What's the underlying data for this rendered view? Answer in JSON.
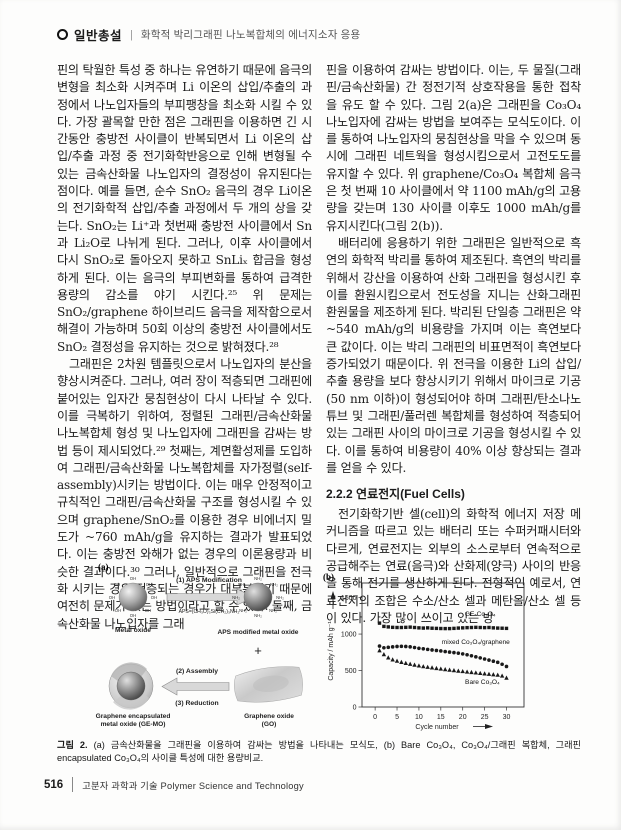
{
  "page": {
    "header": {
      "section_label": "일반총설",
      "separator": "|",
      "title": "화학적 박리그래핀 나노복합체의 에너지소자 응용"
    },
    "footer": {
      "page_number": "516",
      "journal": "고분자 과학과 기술 Polymer Science and Technology"
    }
  },
  "body": {
    "left_column": {
      "para1": "핀의 탁월한 특성 중 하나는 유연하기 때문에 음극의 변형을 최소화 시켜주며 Li 이온의 삽입/추출의 과정에서 나노입자들의 부피팽창을 최소화 시킬 수 있다. 가장 괄목할 만한 점은 그래핀을 이용하면 긴 시간동안 충방전 사이클이 반복되면서 Li 이온의 삽입/추출 과정 중 전기화학반응으로 인해 변형될 수 있는 금속산화물 나노입자의 결정성이 유지된다는 점이다. 예를 들면, 순수 SnO₂ 음극의 경우 Li이온의 전기화학적 삽입/추출 과정에서 두 개의 상을 갖는다. SnO₂는 Li⁺과 첫번째 충방전 사이클에서 Sn과 Li₂O로 나뉘게 된다. 그러나, 이후 사이클에서 다시 SnO₂로 돌아오지 못하고 SnLiₓ 합금을 형성하게 된다. 이는 음극의 부피변화를 통하여 급격한 용량의 감소를 야기 시킨다.²⁵ 위 문제는 SnO₂/graphene 하이브리드 음극을 제작함으로서 해결이 가능하며 50회 이상의 충방전 사이클에서도 SnO₂ 결정성을 유지하는 것으로 밝혀졌다.²⁸",
      "para2": "그래핀은 2차원 템플릿으로서 나노입자의 분산을 향상시켜준다. 그러나, 여러 장이 적층되면 그래핀에 붙어있는 입자간 뭉침현상이 다시 나타날 수 있다. 이를 극복하기 위하여, 정렬된 그래핀/금속산화물 나노복합체 형성 및 나노입자에 그래핀을 감싸는 방법 등이 제시되었다.²⁹ 첫째는, 계면활성제를 도입하여 그래핀/금속산화물 나노복합체를 자가정렬(self-assembly)시키는 방법이다. 이는 매우 안정적이고 규칙적인 그래핀/금속산화물 구조를 형성시킬 수 있으며 graphene/SnO₂를 이용한 경우 비에너지 밀도가 ~760 mAh/g을 유지하는 결과가 발표되었다. 이는 충방전 와해가 없는 경우의 이론용량과 비슷한 결과이다.³⁰ 그러나, 일반적으로 그래핀을 전극화 시키는 경우 적층되는 경우가 대부분이기 때문에 여전히 문제가 있는 방법이라고 할 수 있다. 둘째, 금속산화물 나노입자를 그래"
    },
    "right_column": {
      "para1": "핀을 이용하여 감싸는 방법이다. 이는, 두 물질(그래핀/금속산화물) 간 정전기적 상호작용을 통한 접착을 유도 할 수 있다. 그림 2(a)은 그래핀을 Co₃O₄ 나노입자에 감싸는 방법을 보여주는 모식도이다. 이를 통하여 나노입자의 뭉침현상을 막을 수 있으며 동시에 그래핀 네트웍을 형성시킴으로서 고전도도를 유지할 수 있다. 위 graphene/Co₃O₄ 복합체 음극은 첫 번째 10 사이클에서 약 1100 mAh/g의 고용량을 갖는며 130 사이클 이후도 1000 mAh/g를 유지시킨다(그림 2(b)).",
      "para2": "배터리에 응용하기 위한 그래핀은 일반적으로 흑연의 화학적 박리를 통하여 제조된다. 흑연의 박리를 위해서 강산을 이용하여 산화 그래핀을 형성시킨 후 이를 환원시킴으로서 전도성을 지니는 산화그래핀 환원물을 제조하게 된다. 박리된 단일층 그래핀은 약 ~540 mAh/g의 비용량을 가지며 이는 흑연보다 큰 값이다. 이는 박리 그래핀의 비표면적이 흑연보다 증가되었기 때문이다. 위 전극을 이용한 Li의 삽입/추출 용량을 보다 향상시키기 위해서 마이크로 기공(50 nm 이하)이 형성되어야 하며 그래핀/탄소나노튜브 및 그래핀/풀러렌 복합체를 형성하여 적층되어있는 그래핀 사이의 마이크로 기공을 형성시킬 수 있다. 이를 통하여 비용량이 40% 이상 향상되는 결과를 얻을 수 있다.",
      "heading": "2.2.2 연료전지(Fuel Cells)",
      "para3": "전기화학기반 셀(cell)의 화학적 에너지 저장 메커니즘을 따르고 있는 배터리 또는 수퍼커패시터와 다르게, 연료전지는 외부의 소스로부터 연속적으로 공급해주는 연료(음극)와 산화제(양극) 사이의 반응을 통해 전기를 생산하게 된다. 전형적인 예로서, 연료전지의 조합은 수소/산소 셀과 메탄올/산소 셀 등이 있다. 가장 많이 쓰이고 있는 방"
    }
  },
  "figure": {
    "panel_a": {
      "label": "(a)",
      "step1": "(1) APS Modification",
      "aps_formula": "APS=(CH₃O)₃Si(CH₂)₃NH₂",
      "metal_oxide_label": "Metal oxide",
      "aps_modified_label": "APS modified metal oxide",
      "plus": "+",
      "step2": "(2) Assembly",
      "step3": "(3) Reduction",
      "ge_mo_label_line1": "Graphene encapsulated",
      "ge_mo_label_line2": "metal oxide (GE-MO)",
      "go_label_line1": "Graphene oxide",
      "go_label_line2": "(GO)",
      "ligand_left": "OH",
      "ligand_right": "NH₂"
    },
    "panel_b_label": "(b)",
    "caption_label": "그림 2.",
    "caption_text": "(a) 금속산화물을 그래핀을 이용하여 감싸는 방법을 나타내는 모식도, (b) Bare Co₃O₄, Co₃O₄/그래핀 복합체, 그래핀 encapsulated Co₃O₄의 사이클 특성에 대한 용량비교."
  },
  "chart_data": {
    "type": "scatter",
    "title": "",
    "xlabel": "Cycle number",
    "ylabel": "Capacity / mAh g⁻¹",
    "xlim": [
      -3,
      34
    ],
    "ylim": [
      0,
      1700
    ],
    "xticks": [
      0,
      5,
      10,
      15,
      20,
      25,
      30
    ],
    "yticks": [
      0,
      500,
      1000,
      1500
    ],
    "grid": false,
    "legend_position": "in-plot text annotations",
    "x": [
      1,
      2,
      3,
      4,
      5,
      6,
      7,
      8,
      9,
      10,
      11,
      12,
      13,
      14,
      15,
      16,
      17,
      18,
      19,
      20,
      21,
      22,
      23,
      24,
      25,
      26,
      27,
      28,
      29,
      30
    ],
    "series": [
      {
        "name": "GE-Co₃O₄",
        "marker": "square",
        "color": "#1a1a1a",
        "values": [
          1150,
          1105,
          1098,
          1092,
          1090,
          1090,
          1092,
          1095,
          1090,
          1085,
          1082,
          1085,
          1080,
          1078,
          1076,
          1075,
          1075,
          1078,
          1082,
          1085,
          1088,
          1090,
          1092,
          1090,
          1088,
          1090,
          1085,
          1082,
          1080,
          1078
        ]
      },
      {
        "name": "mixed Co₃O₄/graphene",
        "marker": "circle",
        "color": "#1a1a1a",
        "values": [
          835,
          812,
          818,
          825,
          830,
          832,
          830,
          825,
          815,
          805,
          798,
          790,
          782,
          775,
          768,
          760,
          753,
          746,
          738,
          728,
          716,
          702,
          688,
          673,
          658,
          643,
          628,
          612,
          586,
          556
        ]
      },
      {
        "name": "Bare Co₃O₄",
        "marker": "triangle",
        "color": "#1a1a1a",
        "values": [
          775,
          722,
          678,
          650,
          632,
          616,
          602,
          590,
          578,
          567,
          557,
          548,
          540,
          532,
          524,
          517,
          510,
          503,
          496,
          490,
          483,
          477,
          471,
          464,
          458,
          452,
          446,
          440,
          428,
          400
        ]
      }
    ],
    "annotations": [
      {
        "text": "GE-Co₃O₄",
        "x": 24,
        "y": 1250
      },
      {
        "text": "mixed Co₃O₄/graphene",
        "x": 23,
        "y": 865
      },
      {
        "text": "Bare Co₃O₄",
        "x": 24.5,
        "y": 315
      }
    ]
  }
}
